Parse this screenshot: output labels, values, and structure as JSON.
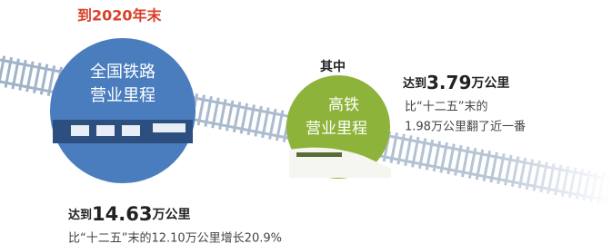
{
  "header": {
    "title": "到2020年末"
  },
  "national": {
    "label": [
      "全国铁路",
      "营业里程"
    ],
    "prefix": "达到",
    "number": "14.63",
    "unit": "万公里",
    "note": "比“十二五”末的12.10万公里增长20.9%"
  },
  "subset": {
    "title": "其中"
  },
  "highspeed": {
    "label": [
      "高铁",
      "营业里程"
    ],
    "prefix": "达到",
    "number": "3.79",
    "unit": "万公里",
    "note": [
      "比“十二五”末的",
      "1.98万公里翻了近一番"
    ]
  }
}
